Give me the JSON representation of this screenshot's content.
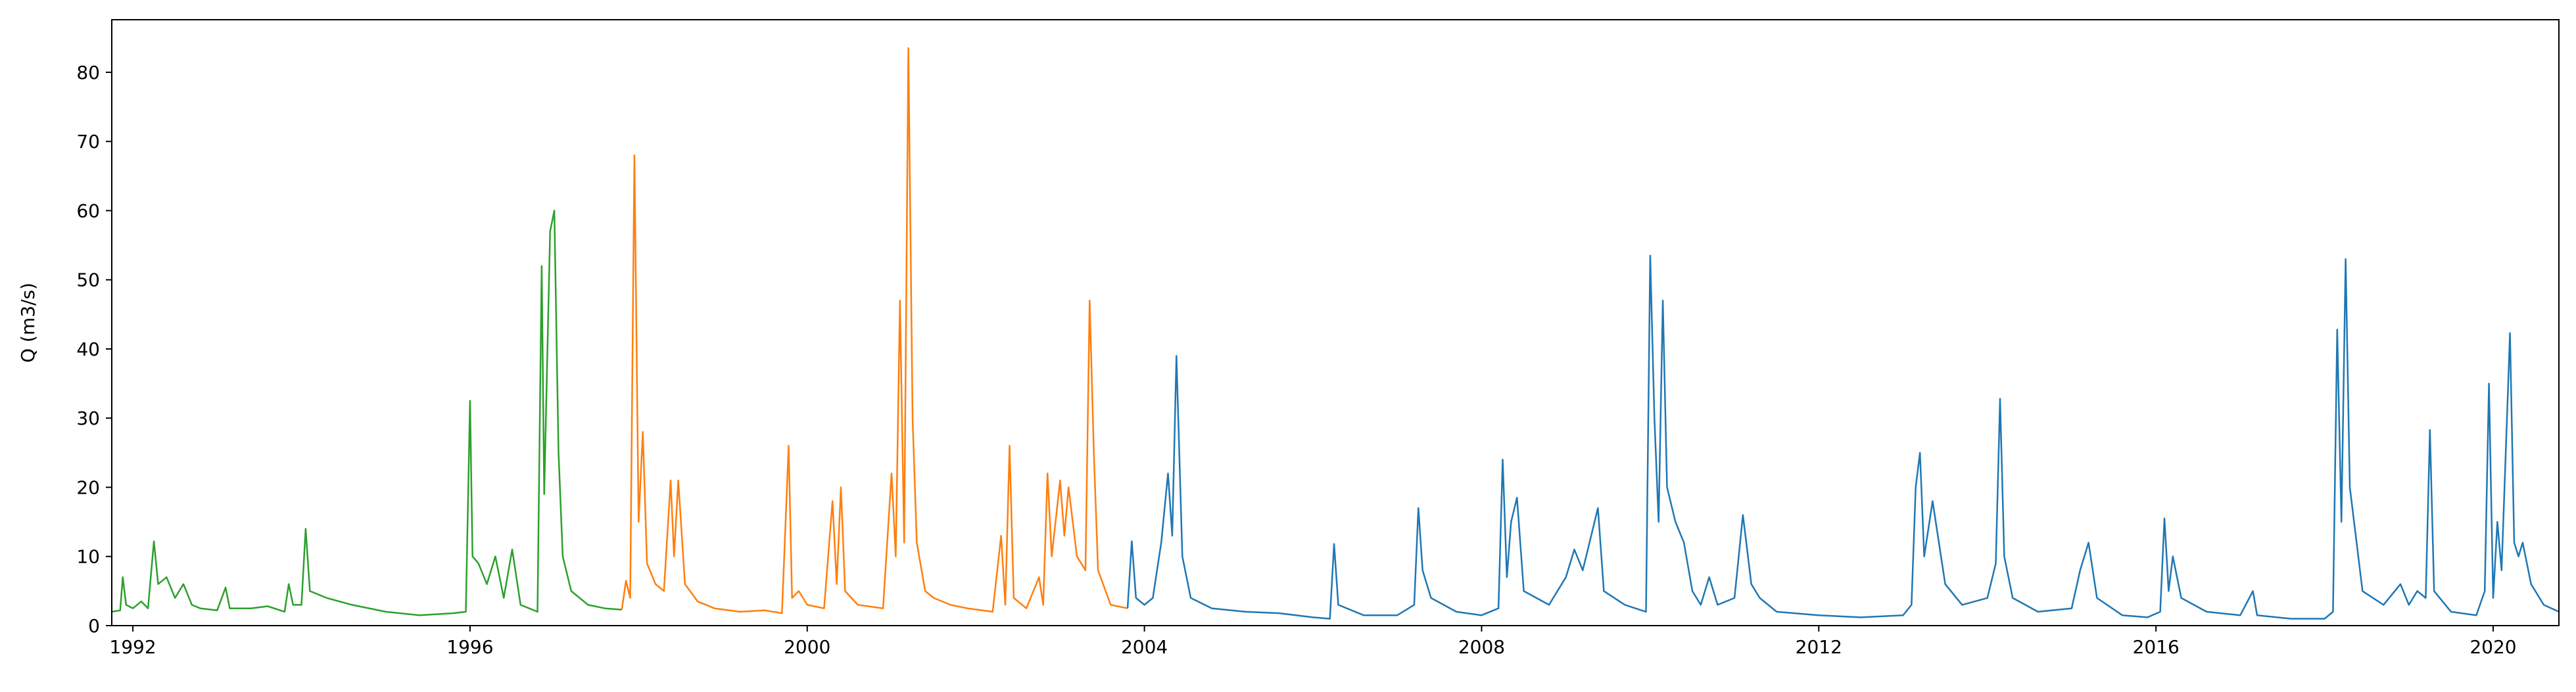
{
  "chart_data": {
    "type": "line",
    "ylabel": "Q (m3/s)",
    "xlim": [
      1991.75,
      2020.78
    ],
    "xticks": [
      1992,
      1996,
      2000,
      2004,
      2008,
      2012,
      2016,
      2020
    ],
    "ylim": [
      0,
      87.6
    ],
    "yticks": [
      0,
      10,
      20,
      30,
      40,
      50,
      60,
      70,
      80
    ],
    "grid": false,
    "series": [
      {
        "color": "#2ca02c",
        "x": [
          1991.75,
          1991.85,
          1991.88,
          1991.92,
          1992.0,
          1992.1,
          1992.18,
          1992.25,
          1992.3,
          1992.4,
          1992.5,
          1992.6,
          1992.7,
          1992.8,
          1993.0,
          1993.1,
          1993.15,
          1993.4,
          1993.6,
          1993.8,
          1993.85,
          1993.9,
          1994.0,
          1994.05,
          1994.1,
          1994.3,
          1994.6,
          1995.0,
          1995.4,
          1995.8,
          1995.95,
          1996.0,
          1996.03,
          1996.1,
          1996.2,
          1996.3,
          1996.4,
          1996.5,
          1996.6,
          1996.8,
          1996.85,
          1996.88,
          1996.95,
          1997.0,
          1997.05,
          1997.1,
          1997.2,
          1997.4,
          1997.6,
          1997.8
        ],
        "values": [
          2,
          2.2,
          7,
          3,
          2.5,
          3.5,
          2.5,
          12.2,
          6,
          7,
          4,
          6,
          3,
          2.5,
          2.2,
          5.5,
          2.5,
          2.5,
          2.8,
          2,
          6,
          3,
          3,
          14,
          5,
          4,
          3,
          2,
          1.5,
          1.8,
          2,
          32.5,
          10,
          9,
          6,
          10,
          4,
          11,
          3,
          2,
          52,
          19,
          57,
          60,
          25,
          10,
          5,
          3,
          2.5,
          2.3
        ]
      },
      {
        "color": "#ff7f0e",
        "x": [
          1997.8,
          1997.85,
          1997.9,
          1997.95,
          1998.0,
          1998.05,
          1998.1,
          1998.2,
          1998.3,
          1998.38,
          1998.42,
          1998.47,
          1998.55,
          1998.7,
          1998.9,
          1999.2,
          1999.5,
          1999.7,
          1999.78,
          1999.82,
          1999.9,
          2000.0,
          2000.2,
          2000.3,
          2000.35,
          2000.4,
          2000.45,
          2000.6,
          2000.9,
          2001.0,
          2001.05,
          2001.1,
          2001.15,
          2001.2,
          2001.25,
          2001.3,
          2001.4,
          2001.5,
          2001.7,
          2001.9,
          2002.2,
          2002.3,
          2002.35,
          2002.4,
          2002.45,
          2002.6,
          2002.75,
          2002.8,
          2002.85,
          2002.9,
          2003.0,
          2003.05,
          2003.1,
          2003.2,
          2003.3,
          2003.35,
          2003.4,
          2003.45,
          2003.6,
          2003.8
        ],
        "values": [
          2.3,
          6.5,
          4,
          68,
          15,
          28,
          9,
          6,
          5,
          21,
          10,
          21,
          6,
          3.5,
          2.5,
          2,
          2.2,
          1.8,
          26,
          4,
          5,
          3,
          2.5,
          18,
          6,
          20,
          5,
          3,
          2.5,
          22,
          10,
          47,
          12,
          83.5,
          30,
          12,
          5,
          4,
          3,
          2.5,
          2,
          13,
          3,
          26,
          4,
          2.5,
          7,
          3,
          22,
          10,
          21,
          13,
          20,
          10,
          8,
          47,
          25,
          8,
          3,
          2.5
        ]
      },
      {
        "color": "#1f77b4",
        "x": [
          2003.8,
          2003.85,
          2003.9,
          2004.0,
          2004.1,
          2004.2,
          2004.28,
          2004.33,
          2004.38,
          2004.45,
          2004.55,
          2004.8,
          2005.2,
          2005.6,
          2006.0,
          2006.2,
          2006.25,
          2006.3,
          2006.6,
          2007.0,
          2007.2,
          2007.25,
          2007.3,
          2007.4,
          2007.7,
          2008.0,
          2008.2,
          2008.25,
          2008.3,
          2008.35,
          2008.42,
          2008.5,
          2008.8,
          2009.0,
          2009.1,
          2009.2,
          2009.38,
          2009.45,
          2009.7,
          2009.95,
          2010.0,
          2010.05,
          2010.1,
          2010.15,
          2010.2,
          2010.3,
          2010.4,
          2010.5,
          2010.6,
          2010.7,
          2010.8,
          2011.0,
          2011.1,
          2011.2,
          2011.3,
          2011.5,
          2012.0,
          2012.5,
          2013.0,
          2013.1,
          2013.15,
          2013.2,
          2013.25,
          2013.35,
          2013.5,
          2013.7,
          2014.0,
          2014.1,
          2014.15,
          2014.2,
          2014.3,
          2014.6,
          2015.0,
          2015.1,
          2015.2,
          2015.3,
          2015.6,
          2015.9,
          2016.05,
          2016.1,
          2016.15,
          2016.2,
          2016.3,
          2016.6,
          2017.0,
          2017.15,
          2017.2,
          2017.6,
          2018.0,
          2018.1,
          2018.15,
          2018.2,
          2018.25,
          2018.3,
          2018.38,
          2018.45,
          2018.7,
          2018.9,
          2019.0,
          2019.1,
          2019.2,
          2019.25,
          2019.3,
          2019.5,
          2019.8,
          2019.9,
          2019.95,
          2020.0,
          2020.05,
          2020.1,
          2020.2,
          2020.25,
          2020.3,
          2020.35,
          2020.45,
          2020.6,
          2020.78
        ],
        "values": [
          2.5,
          12.2,
          4,
          3,
          4,
          12,
          22,
          13,
          39,
          10,
          4,
          2.5,
          2,
          1.8,
          1.2,
          1,
          11.8,
          3,
          1.5,
          1.5,
          3,
          17,
          8,
          4,
          2,
          1.5,
          2.5,
          24,
          7,
          15,
          18.5,
          5,
          3,
          7,
          11,
          8,
          17,
          5,
          3,
          2,
          53.5,
          30,
          15,
          47,
          20,
          15,
          12,
          5,
          3,
          7,
          3,
          4,
          16,
          6,
          4,
          2,
          1.5,
          1.2,
          1.5,
          3,
          20,
          25,
          10,
          18,
          6,
          3,
          4,
          9,
          32.8,
          10,
          4,
          2,
          2.5,
          8,
          12,
          4,
          1.5,
          1.2,
          2,
          15.5,
          5,
          10,
          4,
          2,
          1.5,
          5,
          1.5,
          1,
          1,
          2,
          42.8,
          15,
          53,
          20,
          12,
          5,
          3,
          6,
          3,
          5,
          4,
          28.3,
          5,
          2,
          1.5,
          5,
          35,
          4,
          15,
          8,
          42.3,
          12,
          10,
          12,
          6,
          3,
          2
        ]
      }
    ]
  }
}
